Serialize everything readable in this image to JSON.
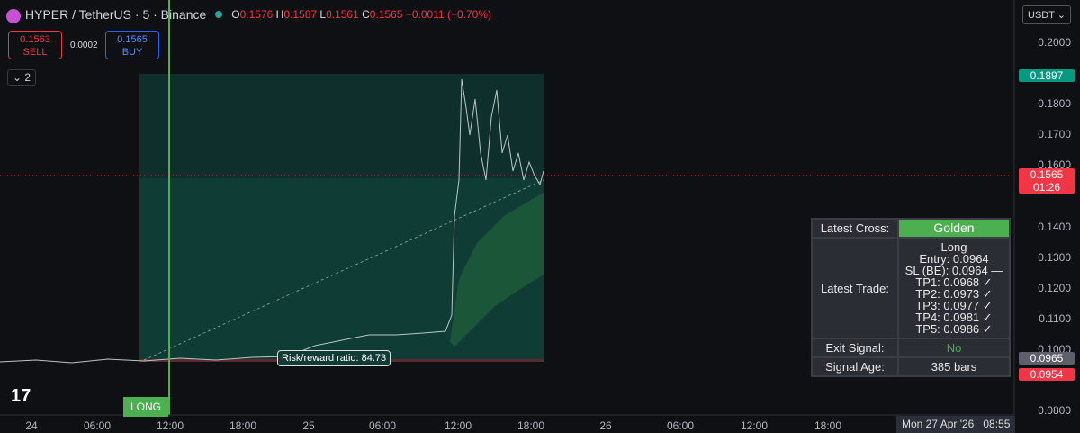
{
  "header": {
    "symbol": "HYPER / TetherUS · 5 · Binance",
    "ohlc": [
      {
        "key": "O",
        "value": "0.1576"
      },
      {
        "key": "H",
        "value": "0.1587"
      },
      {
        "key": "L",
        "value": "0.1561"
      },
      {
        "key": "C",
        "value": "0.1565"
      }
    ],
    "change": "−0.0011 (−0.70%)"
  },
  "trade_buttons": {
    "sell_price": "0.1563",
    "sell_label": "SELL",
    "spread": "0.0002",
    "buy_price": "0.1565",
    "buy_label": "BUY"
  },
  "indicators_count": "2",
  "price_axis": {
    "currency": "USDT",
    "labels": [
      "0.2000",
      "0.1800",
      "0.1700",
      "0.1600",
      "0.1400",
      "0.1300",
      "0.1200",
      "0.1100",
      "0.1000",
      "0.0800"
    ],
    "badges": {
      "high": "0.1897",
      "last": "0.1565",
      "countdown": "01:26",
      "ma": "0.0965",
      "stop": "0.0954"
    }
  },
  "time_axis": {
    "labels": [
      "24",
      "06:00",
      "12:00",
      "18:00",
      "25",
      "06:00",
      "12:00",
      "18:00",
      "26",
      "06:00",
      "12:00",
      "18:00"
    ],
    "cursor": "Mon 27 Apr '26   08:55"
  },
  "annotations": {
    "entry": "LONG",
    "risk_reward": "Risk/reward ratio: 84.73"
  },
  "table": {
    "rows": [
      {
        "label": "Latest Cross:",
        "value": [
          "Golden"
        ]
      },
      {
        "label": "Latest Trade:",
        "value": [
          "Long",
          "Entry: 0.0964",
          "SL (BE): 0.0964 —",
          "TP1: 0.0968 ✓",
          "TP2: 0.0973 ✓",
          "TP3: 0.0977 ✓",
          "TP4: 0.0981 ✓",
          "TP5: 0.0986 ✓"
        ]
      },
      {
        "label": "Exit Signal:",
        "value": [
          "No"
        ]
      },
      {
        "label": "Signal Age:",
        "value": [
          "385 bars"
        ]
      }
    ]
  }
}
